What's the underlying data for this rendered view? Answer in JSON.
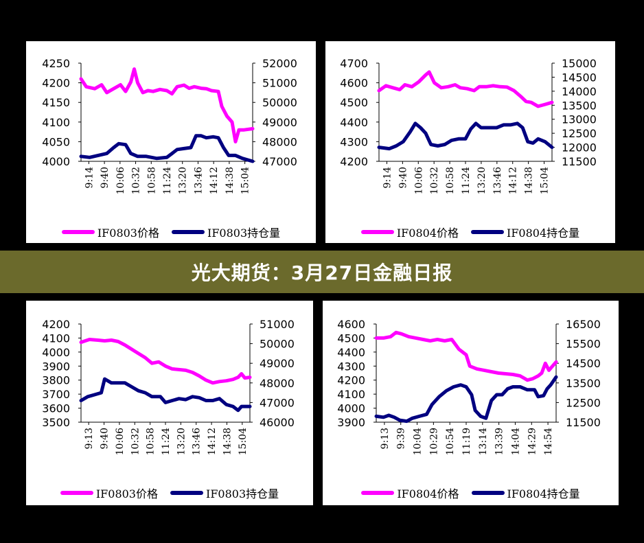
{
  "banner": {
    "title": "光大期货：3月27日金融日报"
  },
  "colors": {
    "price": "#ff00ff",
    "oi": "#000080",
    "banner": "#6b6a2c"
  },
  "chart_data": [
    {
      "type": "line",
      "x": [
        "9:14",
        "9:40",
        "10:06",
        "10:32",
        "10:58",
        "11:24",
        "13:20",
        "13:46",
        "14:12",
        "14:38",
        "15:04"
      ],
      "yleft": {
        "min": 4000,
        "max": 4250,
        "ticks": [
          4000,
          4050,
          4100,
          4150,
          4200,
          4250
        ]
      },
      "yright": {
        "min": 47000,
        "max": 52000,
        "ticks": [
          47000,
          48000,
          49000,
          50000,
          51000,
          52000
        ]
      },
      "series": [
        {
          "name": "IF0803价格",
          "axis": "left",
          "color": "#ff00ff",
          "values": [
            [
              0,
              4210
            ],
            [
              0.03,
              4190
            ],
            [
              0.08,
              4185
            ],
            [
              0.12,
              4195
            ],
            [
              0.15,
              4175
            ],
            [
              0.19,
              4185
            ],
            [
              0.23,
              4195
            ],
            [
              0.26,
              4178
            ],
            [
              0.29,
              4202
            ],
            [
              0.31,
              4235
            ],
            [
              0.33,
              4200
            ],
            [
              0.36,
              4175
            ],
            [
              0.39,
              4180
            ],
            [
              0.42,
              4178
            ],
            [
              0.46,
              4183
            ],
            [
              0.5,
              4180
            ],
            [
              0.53,
              4172
            ],
            [
              0.56,
              4190
            ],
            [
              0.6,
              4194
            ],
            [
              0.63,
              4186
            ],
            [
              0.66,
              4190
            ],
            [
              0.7,
              4186
            ],
            [
              0.73,
              4185
            ],
            [
              0.76,
              4180
            ],
            [
              0.8,
              4178
            ],
            [
              0.82,
              4140
            ],
            [
              0.85,
              4115
            ],
            [
              0.88,
              4100
            ],
            [
              0.9,
              4050
            ],
            [
              0.92,
              4080
            ],
            [
              0.95,
              4080
            ],
            [
              1,
              4083
            ]
          ]
        },
        {
          "name": "IF0803持仓量",
          "axis": "right",
          "color": "#000080",
          "values": [
            [
              0,
              47250
            ],
            [
              0.05,
              47200
            ],
            [
              0.1,
              47300
            ],
            [
              0.15,
              47400
            ],
            [
              0.19,
              47700
            ],
            [
              0.22,
              47900
            ],
            [
              0.26,
              47850
            ],
            [
              0.29,
              47400
            ],
            [
              0.33,
              47250
            ],
            [
              0.38,
              47250
            ],
            [
              0.44,
              47150
            ],
            [
              0.5,
              47200
            ],
            [
              0.53,
              47400
            ],
            [
              0.56,
              47600
            ],
            [
              0.6,
              47650
            ],
            [
              0.64,
              47700
            ],
            [
              0.67,
              48300
            ],
            [
              0.7,
              48300
            ],
            [
              0.73,
              48200
            ],
            [
              0.77,
              48250
            ],
            [
              0.8,
              48200
            ],
            [
              0.83,
              47700
            ],
            [
              0.86,
              47300
            ],
            [
              0.9,
              47300
            ],
            [
              0.94,
              47150
            ],
            [
              1,
              47000
            ]
          ]
        }
      ]
    },
    {
      "type": "line",
      "x": [
        "9:14",
        "9:40",
        "10:06",
        "10:32",
        "10:58",
        "11:24",
        "13:20",
        "13:46",
        "14:12",
        "14:38",
        "15:04"
      ],
      "yleft": {
        "min": 4200,
        "max": 4700,
        "ticks": [
          4200,
          4300,
          4400,
          4500,
          4600,
          4700
        ]
      },
      "yright": {
        "min": 11500,
        "max": 15000,
        "ticks": [
          11500,
          12000,
          12500,
          13000,
          13500,
          14000,
          14500,
          15000
        ]
      },
      "series": [
        {
          "name": "IF0804价格",
          "axis": "left",
          "color": "#ff00ff",
          "values": [
            [
              0,
              4560
            ],
            [
              0.04,
              4585
            ],
            [
              0.08,
              4575
            ],
            [
              0.12,
              4565
            ],
            [
              0.15,
              4590
            ],
            [
              0.19,
              4580
            ],
            [
              0.23,
              4605
            ],
            [
              0.27,
              4640
            ],
            [
              0.29,
              4655
            ],
            [
              0.32,
              4600
            ],
            [
              0.36,
              4575
            ],
            [
              0.4,
              4580
            ],
            [
              0.44,
              4590
            ],
            [
              0.47,
              4575
            ],
            [
              0.51,
              4570
            ],
            [
              0.55,
              4560
            ],
            [
              0.58,
              4580
            ],
            [
              0.62,
              4580
            ],
            [
              0.66,
              4585
            ],
            [
              0.7,
              4580
            ],
            [
              0.74,
              4578
            ],
            [
              0.78,
              4560
            ],
            [
              0.82,
              4530
            ],
            [
              0.85,
              4505
            ],
            [
              0.88,
              4500
            ],
            [
              0.92,
              4480
            ],
            [
              0.96,
              4490
            ],
            [
              1,
              4500
            ]
          ]
        },
        {
          "name": "IF0804持仓量",
          "axis": "right",
          "color": "#000080",
          "values": [
            [
              0,
              12000
            ],
            [
              0.06,
              11950
            ],
            [
              0.1,
              12050
            ],
            [
              0.14,
              12200
            ],
            [
              0.18,
              12550
            ],
            [
              0.21,
              12850
            ],
            [
              0.24,
              12700
            ],
            [
              0.27,
              12500
            ],
            [
              0.3,
              12100
            ],
            [
              0.34,
              12050
            ],
            [
              0.38,
              12100
            ],
            [
              0.42,
              12250
            ],
            [
              0.46,
              12300
            ],
            [
              0.5,
              12300
            ],
            [
              0.53,
              12650
            ],
            [
              0.56,
              12850
            ],
            [
              0.59,
              12700
            ],
            [
              0.63,
              12700
            ],
            [
              0.68,
              12700
            ],
            [
              0.72,
              12800
            ],
            [
              0.76,
              12800
            ],
            [
              0.8,
              12850
            ],
            [
              0.83,
              12700
            ],
            [
              0.86,
              12200
            ],
            [
              0.89,
              12150
            ],
            [
              0.92,
              12300
            ],
            [
              0.96,
              12200
            ],
            [
              1,
              12000
            ]
          ]
        }
      ]
    },
    {
      "type": "line",
      "x": [
        "9:13",
        "9:40",
        "10:06",
        "10:32",
        "10:58",
        "11:24",
        "13:20",
        "13:46",
        "14:12",
        "14:38",
        "15:04"
      ],
      "yleft": {
        "min": 3500,
        "max": 4200,
        "ticks": [
          3500,
          3600,
          3700,
          3800,
          3900,
          4000,
          4100,
          4200
        ]
      },
      "yright": {
        "min": 46000,
        "max": 51000,
        "ticks": [
          46000,
          47000,
          48000,
          49000,
          50000,
          51000
        ]
      },
      "series": [
        {
          "name": "IF0803价格",
          "axis": "left",
          "color": "#ff00ff",
          "values": [
            [
              0,
              4070
            ],
            [
              0.05,
              4090
            ],
            [
              0.1,
              4085
            ],
            [
              0.14,
              4080
            ],
            [
              0.18,
              4085
            ],
            [
              0.22,
              4075
            ],
            [
              0.26,
              4050
            ],
            [
              0.3,
              4020
            ],
            [
              0.34,
              3990
            ],
            [
              0.38,
              3960
            ],
            [
              0.42,
              3920
            ],
            [
              0.46,
              3930
            ],
            [
              0.5,
              3900
            ],
            [
              0.54,
              3880
            ],
            [
              0.58,
              3875
            ],
            [
              0.62,
              3870
            ],
            [
              0.66,
              3855
            ],
            [
              0.7,
              3830
            ],
            [
              0.74,
              3800
            ],
            [
              0.78,
              3780
            ],
            [
              0.82,
              3790
            ],
            [
              0.86,
              3795
            ],
            [
              0.9,
              3805
            ],
            [
              0.93,
              3820
            ],
            [
              0.95,
              3845
            ],
            [
              0.97,
              3815
            ],
            [
              1,
              3820
            ]
          ]
        },
        {
          "name": "IF0803持仓量",
          "axis": "right",
          "color": "#000080",
          "values": [
            [
              0,
              47100
            ],
            [
              0.04,
              47300
            ],
            [
              0.08,
              47400
            ],
            [
              0.12,
              47500
            ],
            [
              0.14,
              48200
            ],
            [
              0.18,
              48000
            ],
            [
              0.22,
              48000
            ],
            [
              0.26,
              48000
            ],
            [
              0.3,
              47800
            ],
            [
              0.34,
              47600
            ],
            [
              0.38,
              47500
            ],
            [
              0.42,
              47300
            ],
            [
              0.47,
              47300
            ],
            [
              0.5,
              47000
            ],
            [
              0.54,
              47100
            ],
            [
              0.58,
              47200
            ],
            [
              0.62,
              47150
            ],
            [
              0.66,
              47300
            ],
            [
              0.7,
              47250
            ],
            [
              0.74,
              47100
            ],
            [
              0.78,
              47100
            ],
            [
              0.82,
              47200
            ],
            [
              0.86,
              46900
            ],
            [
              0.9,
              46800
            ],
            [
              0.93,
              46600
            ],
            [
              0.95,
              46800
            ],
            [
              1,
              46800
            ]
          ]
        }
      ]
    },
    {
      "type": "line",
      "x": [
        "9:13",
        "9:39",
        "10:04",
        "10:29",
        "10:54",
        "11:19",
        "13:14",
        "13:39",
        "14:04",
        "14:29",
        "14:54"
      ],
      "yleft": {
        "min": 3900,
        "max": 4600,
        "ticks": [
          3900,
          4000,
          4100,
          4200,
          4300,
          4400,
          4500,
          4600
        ]
      },
      "yright": {
        "min": 11500,
        "max": 16500,
        "ticks": [
          11500,
          12500,
          13500,
          14500,
          15500,
          16500
        ]
      },
      "series": [
        {
          "name": "IF0804价格",
          "axis": "left",
          "color": "#ff00ff",
          "values": [
            [
              0,
              4500
            ],
            [
              0.04,
              4500
            ],
            [
              0.08,
              4510
            ],
            [
              0.11,
              4540
            ],
            [
              0.14,
              4530
            ],
            [
              0.18,
              4510
            ],
            [
              0.22,
              4500
            ],
            [
              0.26,
              4490
            ],
            [
              0.3,
              4480
            ],
            [
              0.34,
              4490
            ],
            [
              0.38,
              4480
            ],
            [
              0.42,
              4490
            ],
            [
              0.46,
              4420
            ],
            [
              0.5,
              4380
            ],
            [
              0.52,
              4300
            ],
            [
              0.56,
              4280
            ],
            [
              0.6,
              4270
            ],
            [
              0.64,
              4260
            ],
            [
              0.68,
              4250
            ],
            [
              0.72,
              4245
            ],
            [
              0.76,
              4240
            ],
            [
              0.8,
              4230
            ],
            [
              0.84,
              4200
            ],
            [
              0.87,
              4210
            ],
            [
              0.9,
              4230
            ],
            [
              0.92,
              4250
            ],
            [
              0.94,
              4320
            ],
            [
              0.96,
              4270
            ],
            [
              1,
              4330
            ]
          ]
        },
        {
          "name": "IF0804持仓量",
          "axis": "right",
          "color": "#000080",
          "values": [
            [
              0,
              11800
            ],
            [
              0.04,
              11750
            ],
            [
              0.07,
              11850
            ],
            [
              0.1,
              11750
            ],
            [
              0.13,
              11600
            ],
            [
              0.17,
              11550
            ],
            [
              0.2,
              11700
            ],
            [
              0.24,
              11800
            ],
            [
              0.28,
              11900
            ],
            [
              0.31,
              12400
            ],
            [
              0.35,
              12800
            ],
            [
              0.39,
              13100
            ],
            [
              0.43,
              13300
            ],
            [
              0.47,
              13400
            ],
            [
              0.5,
              13300
            ],
            [
              0.53,
              12900
            ],
            [
              0.55,
              12100
            ],
            [
              0.58,
              11800
            ],
            [
              0.61,
              11700
            ],
            [
              0.64,
              12600
            ],
            [
              0.67,
              12900
            ],
            [
              0.7,
              12900
            ],
            [
              0.73,
              13200
            ],
            [
              0.76,
              13300
            ],
            [
              0.8,
              13300
            ],
            [
              0.84,
              13150
            ],
            [
              0.88,
              13150
            ],
            [
              0.9,
              12800
            ],
            [
              0.93,
              12850
            ],
            [
              0.95,
              13200
            ],
            [
              0.97,
              13400
            ],
            [
              1,
              13800
            ]
          ]
        }
      ]
    }
  ]
}
